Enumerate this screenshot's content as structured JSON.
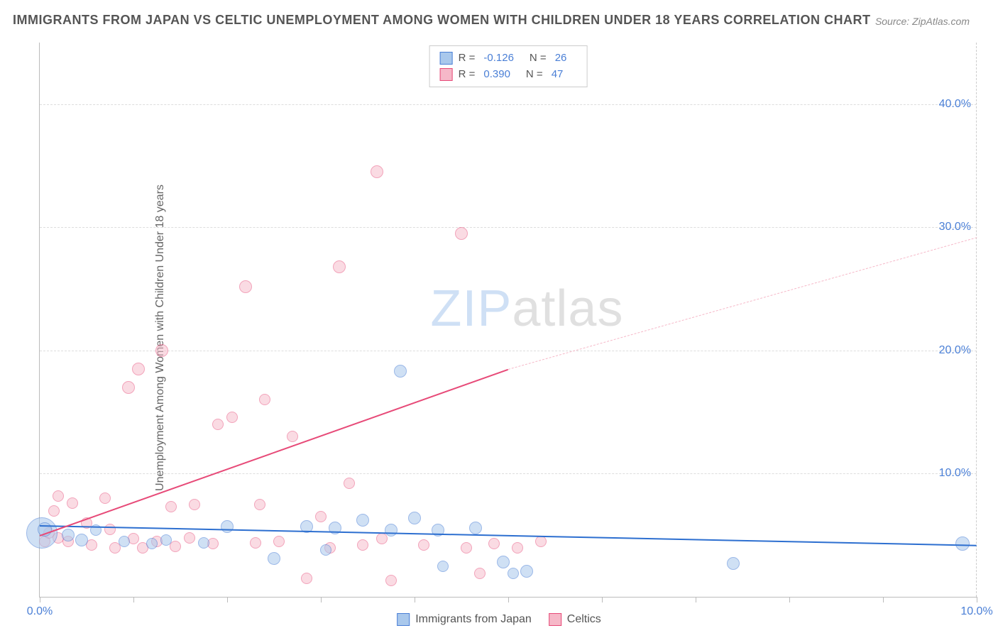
{
  "title": "IMMIGRANTS FROM JAPAN VS CELTIC UNEMPLOYMENT AMONG WOMEN WITH CHILDREN UNDER 18 YEARS CORRELATION CHART",
  "source_prefix": "Source: ",
  "source": "ZipAtlas.com",
  "ylabel": "Unemployment Among Women with Children Under 18 years",
  "watermark": {
    "part1": "ZIP",
    "part2": "atlas"
  },
  "chart": {
    "type": "scatter",
    "background_color": "#ffffff",
    "grid_color": "#dddddd",
    "axis_color": "#bbbbbb",
    "xlim": [
      0,
      10
    ],
    "ylim": [
      0,
      45
    ],
    "xticks": [
      0,
      1,
      2,
      3,
      4,
      5,
      6,
      7,
      8,
      9,
      10
    ],
    "xtick_labels_shown": {
      "0": "0.0%",
      "10": "10.0%"
    },
    "yticks": [
      10,
      20,
      30,
      40
    ],
    "ytick_labels": [
      "10.0%",
      "20.0%",
      "30.0%",
      "40.0%"
    ],
    "tick_label_color": "#4a7fd6",
    "tick_label_fontsize": 16
  },
  "series": [
    {
      "name": "Immigrants from Japan",
      "key": "japan",
      "marker_fill": "#a9c8ec",
      "marker_stroke": "#4a7fd6",
      "marker_fill_opacity": 0.55,
      "line_color": "#2d6fd0",
      "line_width": 2,
      "r_value": "-0.126",
      "n_value": "26",
      "trend": {
        "x1": 0.0,
        "y1": 5.8,
        "x2": 10.0,
        "y2": 4.2
      },
      "points": [
        {
          "x": 0.02,
          "y": 5.2,
          "r": 22
        },
        {
          "x": 0.05,
          "y": 5.5,
          "r": 10
        },
        {
          "x": 0.3,
          "y": 5.0,
          "r": 9
        },
        {
          "x": 0.45,
          "y": 4.6,
          "r": 9
        },
        {
          "x": 0.6,
          "y": 5.4,
          "r": 8
        },
        {
          "x": 0.9,
          "y": 4.5,
          "r": 8
        },
        {
          "x": 1.2,
          "y": 4.3,
          "r": 8
        },
        {
          "x": 1.35,
          "y": 4.6,
          "r": 8
        },
        {
          "x": 1.75,
          "y": 4.4,
          "r": 8
        },
        {
          "x": 2.0,
          "y": 5.7,
          "r": 9
        },
        {
          "x": 2.5,
          "y": 3.1,
          "r": 9
        },
        {
          "x": 2.85,
          "y": 5.7,
          "r": 9
        },
        {
          "x": 3.05,
          "y": 3.8,
          "r": 8
        },
        {
          "x": 3.15,
          "y": 5.6,
          "r": 9
        },
        {
          "x": 3.45,
          "y": 6.2,
          "r": 9
        },
        {
          "x": 3.75,
          "y": 5.4,
          "r": 9
        },
        {
          "x": 3.85,
          "y": 18.3,
          "r": 9
        },
        {
          "x": 4.0,
          "y": 6.4,
          "r": 9
        },
        {
          "x": 4.25,
          "y": 5.4,
          "r": 9
        },
        {
          "x": 4.3,
          "y": 2.5,
          "r": 8
        },
        {
          "x": 4.65,
          "y": 5.6,
          "r": 9
        },
        {
          "x": 4.95,
          "y": 2.8,
          "r": 9
        },
        {
          "x": 5.2,
          "y": 2.1,
          "r": 9
        },
        {
          "x": 5.05,
          "y": 1.9,
          "r": 8
        },
        {
          "x": 7.4,
          "y": 2.7,
          "r": 9
        },
        {
          "x": 9.85,
          "y": 4.3,
          "r": 10
        }
      ]
    },
    {
      "name": "Celtics",
      "key": "celtics",
      "marker_fill": "#f6b8c8",
      "marker_stroke": "#e74a78",
      "marker_fill_opacity": 0.5,
      "line_color": "#e74a78",
      "line_width": 2,
      "dashed_color": "#f6b8c8",
      "r_value": "0.390",
      "n_value": "47",
      "trend_solid": {
        "x1": 0.0,
        "y1": 5.0,
        "x2": 5.0,
        "y2": 18.5
      },
      "trend_dashed": {
        "x1": 5.0,
        "y1": 18.5,
        "x2": 10.0,
        "y2": 29.2
      },
      "points": [
        {
          "x": 0.05,
          "y": 4.5,
          "r": 8
        },
        {
          "x": 0.1,
          "y": 5.2,
          "r": 8
        },
        {
          "x": 0.15,
          "y": 7.0,
          "r": 8
        },
        {
          "x": 0.2,
          "y": 8.2,
          "r": 8
        },
        {
          "x": 0.35,
          "y": 7.6,
          "r": 8
        },
        {
          "x": 0.2,
          "y": 4.8,
          "r": 8
        },
        {
          "x": 0.3,
          "y": 4.5,
          "r": 8
        },
        {
          "x": 0.5,
          "y": 6.0,
          "r": 8
        },
        {
          "x": 0.55,
          "y": 4.2,
          "r": 8
        },
        {
          "x": 0.7,
          "y": 8.0,
          "r": 8
        },
        {
          "x": 0.75,
          "y": 5.5,
          "r": 8
        },
        {
          "x": 0.8,
          "y": 4.0,
          "r": 8
        },
        {
          "x": 0.95,
          "y": 17.0,
          "r": 9
        },
        {
          "x": 1.0,
          "y": 4.7,
          "r": 8
        },
        {
          "x": 1.05,
          "y": 18.5,
          "r": 9
        },
        {
          "x": 1.1,
          "y": 4.0,
          "r": 8
        },
        {
          "x": 1.25,
          "y": 4.5,
          "r": 8
        },
        {
          "x": 1.3,
          "y": 20.0,
          "r": 9
        },
        {
          "x": 1.4,
          "y": 7.3,
          "r": 8
        },
        {
          "x": 1.45,
          "y": 4.1,
          "r": 8
        },
        {
          "x": 1.6,
          "y": 4.8,
          "r": 8
        },
        {
          "x": 1.65,
          "y": 7.5,
          "r": 8
        },
        {
          "x": 1.85,
          "y": 4.3,
          "r": 8
        },
        {
          "x": 1.9,
          "y": 14.0,
          "r": 8
        },
        {
          "x": 2.05,
          "y": 14.6,
          "r": 8
        },
        {
          "x": 2.2,
          "y": 25.2,
          "r": 9
        },
        {
          "x": 2.3,
          "y": 4.4,
          "r": 8
        },
        {
          "x": 2.35,
          "y": 7.5,
          "r": 8
        },
        {
          "x": 2.4,
          "y": 16.0,
          "r": 8
        },
        {
          "x": 2.55,
          "y": 4.5,
          "r": 8
        },
        {
          "x": 2.7,
          "y": 13.0,
          "r": 8
        },
        {
          "x": 2.85,
          "y": 1.5,
          "r": 8
        },
        {
          "x": 3.0,
          "y": 6.5,
          "r": 8
        },
        {
          "x": 3.1,
          "y": 4.0,
          "r": 8
        },
        {
          "x": 3.2,
          "y": 26.8,
          "r": 9
        },
        {
          "x": 3.3,
          "y": 9.2,
          "r": 8
        },
        {
          "x": 3.45,
          "y": 4.2,
          "r": 8
        },
        {
          "x": 3.6,
          "y": 34.5,
          "r": 9
        },
        {
          "x": 3.65,
          "y": 4.7,
          "r": 8
        },
        {
          "x": 3.75,
          "y": 1.3,
          "r": 8
        },
        {
          "x": 4.1,
          "y": 4.2,
          "r": 8
        },
        {
          "x": 4.5,
          "y": 29.5,
          "r": 9
        },
        {
          "x": 4.55,
          "y": 4.0,
          "r": 8
        },
        {
          "x": 4.7,
          "y": 1.9,
          "r": 8
        },
        {
          "x": 4.85,
          "y": 4.3,
          "r": 8
        },
        {
          "x": 5.1,
          "y": 4.0,
          "r": 8
        },
        {
          "x": 5.35,
          "y": 4.5,
          "r": 8
        }
      ]
    }
  ],
  "top_legend": {
    "r_label": "R =",
    "n_label": "N ="
  },
  "bottom_legend": {
    "items": [
      "Immigrants from Japan",
      "Celtics"
    ]
  }
}
